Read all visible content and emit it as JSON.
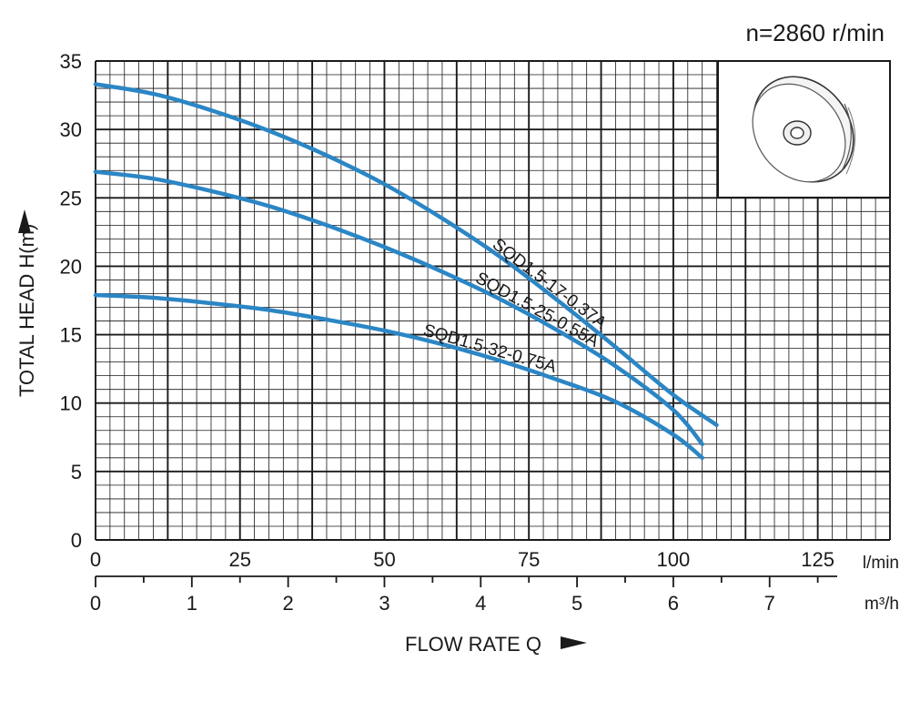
{
  "speed_label": "n=2860 r/min",
  "y_axis_title": "TOTAL HEAD H(m)",
  "x_axis_title": "FLOW RATE Q",
  "x_unit_primary": "l/min",
  "x_unit_secondary": "m³/h",
  "colors": {
    "curve": "#2b86c5",
    "grid": "#1a1a1a",
    "text": "#1a1a1a"
  },
  "inset_icon": "impeller-icon",
  "chart_data": {
    "type": "line",
    "title": "",
    "xlabel": "FLOW RATE Q",
    "ylabel": "TOTAL HEAD H(m)",
    "xlim": [
      0,
      137.5
    ],
    "ylim": [
      0,
      35
    ],
    "grid": true,
    "y_ticks": [
      0,
      5,
      10,
      15,
      20,
      25,
      30,
      35
    ],
    "x_ticks_lmin": [
      0,
      25,
      50,
      75,
      100,
      125
    ],
    "x_ticks_m3h": [
      0,
      1,
      2,
      3,
      4,
      5,
      6,
      7
    ],
    "series": [
      {
        "name": "SQD1.5-17-0.37A",
        "x": [
          0,
          10,
          20,
          30,
          40,
          50,
          60,
          70,
          80,
          90,
          100,
          107.5
        ],
        "y": [
          33.3,
          32.6,
          31.4,
          29.9,
          28.1,
          26.0,
          23.5,
          20.7,
          17.5,
          14.1,
          10.6,
          8.4
        ]
      },
      {
        "name": "SQD1.5-25-0.55A",
        "x": [
          0,
          10,
          20,
          30,
          40,
          50,
          60,
          70,
          80,
          90,
          100,
          105
        ],
        "y": [
          26.9,
          26.4,
          25.5,
          24.4,
          23.0,
          21.4,
          19.6,
          17.6,
          15.3,
          12.7,
          9.5,
          7.0
        ]
      },
      {
        "name": "SQD1.5-32-0.75A",
        "x": [
          0,
          10,
          20,
          30,
          40,
          50,
          60,
          70,
          80,
          90,
          100,
          105
        ],
        "y": [
          17.9,
          17.7,
          17.3,
          16.8,
          16.1,
          15.3,
          14.3,
          13.1,
          11.7,
          10.1,
          7.7,
          6.0
        ]
      }
    ]
  }
}
